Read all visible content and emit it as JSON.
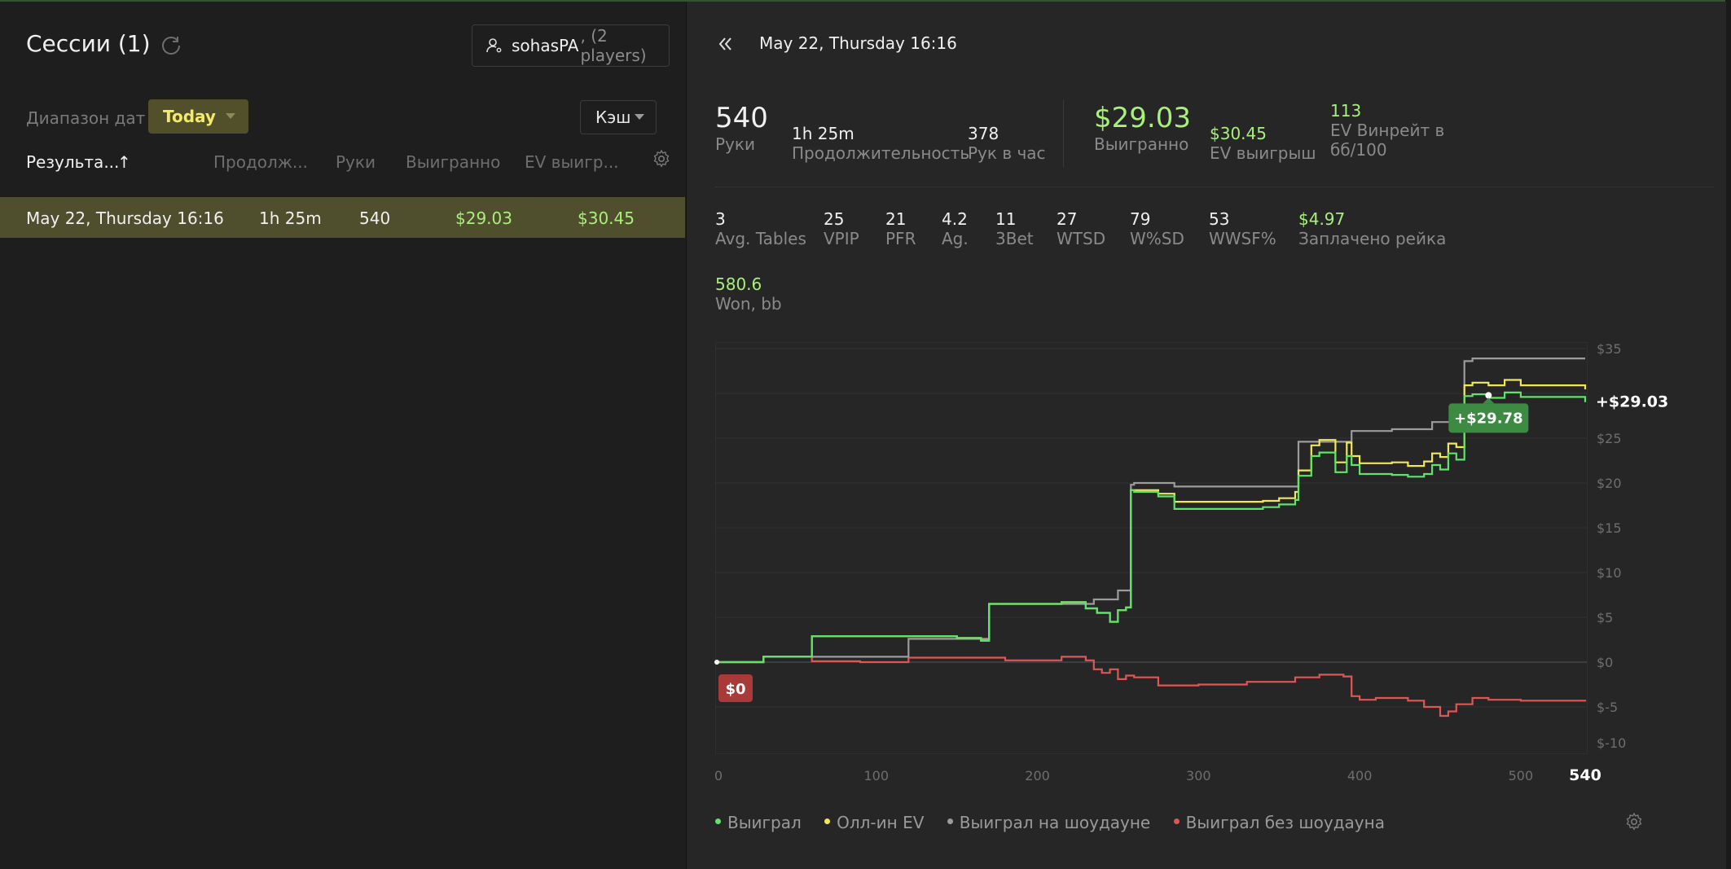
{
  "left_panel": {
    "title": "Сессии (1)",
    "player": {
      "name": "sohasPA",
      "count": ", (2 players)"
    },
    "date_range_label": "Диапазон дат",
    "date_range_value": "Today",
    "game_type": "Кэш",
    "columns": [
      "Результа...",
      "Продолж...",
      "Руки",
      "Выигранно",
      "EV выигр..."
    ],
    "rows": [
      {
        "date": "May 22, Thursday 16:16",
        "duration": "1h 25m",
        "hands": "540",
        "won": "$29.03",
        "ev": "$30.45"
      }
    ]
  },
  "right_panel": {
    "session_title": "May 22, Thursday 16:16",
    "summary": {
      "hands": {
        "value": "540",
        "label": "Руки"
      },
      "duration": {
        "value": "1h 25m",
        "label": "Продолжительность"
      },
      "hands_per_hour": {
        "value": "378",
        "label": "Рук в час"
      },
      "won": {
        "value": "$29.03",
        "label": "Выигранно"
      },
      "ev_won": {
        "value": "$30.45",
        "label": "EV выигрыш"
      },
      "ev_winrate": {
        "value": "113",
        "label": "EV Винрейт в",
        "label2": "бб/100"
      }
    },
    "stats": [
      {
        "value": "3",
        "label": "Avg. Tables"
      },
      {
        "value": "25",
        "label": "VPIP"
      },
      {
        "value": "21",
        "label": "PFR"
      },
      {
        "value": "4.2",
        "label": "Ag."
      },
      {
        "value": "11",
        "label": "3Bet"
      },
      {
        "value": "27",
        "label": "WTSD"
      },
      {
        "value": "79",
        "label": "W%SD"
      },
      {
        "value": "53",
        "label": "WWSF%"
      },
      {
        "value": "$4.97",
        "label": "Заплачено рейка"
      }
    ],
    "won_bb": {
      "value": "580.6",
      "label": "Won, bb"
    }
  },
  "chart_data": {
    "type": "line",
    "x_ticks": [
      "0",
      "100",
      "200",
      "300",
      "400",
      "500",
      "540"
    ],
    "y_ticks": [
      "$35",
      "$25",
      "$20",
      "$15",
      "$10",
      "$5",
      "$0",
      "$-5",
      "$-10"
    ],
    "xlim": [
      0,
      540
    ],
    "ylim": [
      -10,
      35
    ],
    "series": [
      {
        "name": "Выиграл",
        "color": "#5fe36a",
        "x": [
          0,
          20,
          30,
          60,
          120,
          150,
          165,
          170,
          215,
          230,
          237,
          245,
          250,
          255,
          258,
          260,
          275,
          285,
          340,
          350,
          360,
          362,
          370,
          375,
          385,
          392,
          395,
          400,
          420,
          430,
          440,
          445,
          450,
          455,
          460,
          465,
          470,
          480,
          490,
          500,
          540
        ],
        "y": [
          0,
          0,
          0.6,
          2.9,
          2.9,
          2.7,
          2.4,
          6.5,
          6.7,
          6.0,
          5.5,
          4.5,
          5.8,
          6.1,
          19.2,
          19.0,
          18.5,
          17.1,
          17.3,
          17.6,
          18.1,
          20.8,
          23.0,
          23.4,
          21.2,
          23.0,
          22.0,
          21.0,
          20.9,
          20.7,
          21.0,
          22.0,
          21.5,
          23.3,
          22.6,
          29.7,
          29.9,
          29.5,
          30.1,
          29.6,
          29.03
        ]
      },
      {
        "name": "Олл-ин EV",
        "color": "#f0e85a",
        "x": [
          0,
          20,
          30,
          60,
          120,
          150,
          165,
          170,
          215,
          230,
          237,
          245,
          250,
          255,
          258,
          260,
          275,
          285,
          340,
          350,
          360,
          362,
          370,
          375,
          385,
          392,
          395,
          400,
          420,
          430,
          440,
          445,
          450,
          455,
          460,
          465,
          470,
          480,
          490,
          500,
          540
        ],
        "y": [
          0,
          0,
          0.6,
          2.9,
          2.9,
          2.7,
          2.4,
          6.5,
          6.7,
          6.0,
          5.5,
          4.5,
          5.8,
          6.1,
          19.2,
          19.2,
          18.8,
          17.9,
          18.0,
          18.3,
          19.0,
          21.4,
          24.2,
          24.8,
          22.3,
          24.5,
          23.0,
          22.2,
          22.3,
          21.9,
          22.4,
          23.3,
          22.9,
          24.4,
          24.0,
          30.9,
          31.2,
          30.9,
          31.5,
          30.9,
          30.45
        ]
      },
      {
        "name": "Выиграл на шоудауне",
        "color": "#9c9c9c",
        "x": [
          0,
          20,
          30,
          120,
          165,
          170,
          230,
          235,
          245,
          250,
          255,
          258,
          260,
          275,
          285,
          340,
          360,
          362,
          385,
          395,
          400,
          420,
          440,
          445,
          460,
          465,
          470,
          540
        ],
        "y": [
          0,
          0,
          0.6,
          2.6,
          2.6,
          6.5,
          6.5,
          7.0,
          7.0,
          8.0,
          8.0,
          19.8,
          20.0,
          20.0,
          19.6,
          19.6,
          19.6,
          24.6,
          24.6,
          25.8,
          25.8,
          26.0,
          26.0,
          26.8,
          26.8,
          33.6,
          33.9,
          33.9
        ]
      },
      {
        "name": "Выиграл без шоудауна",
        "color": "#e05555",
        "x": [
          0,
          20,
          30,
          60,
          90,
          120,
          150,
          180,
          200,
          215,
          230,
          235,
          240,
          245,
          250,
          255,
          260,
          275,
          300,
          330,
          360,
          375,
          390,
          395,
          400,
          410,
          430,
          440,
          450,
          455,
          460,
          470,
          480,
          500,
          540
        ],
        "y": [
          0,
          0,
          0.6,
          0.1,
          0,
          0.5,
          0.5,
          0.2,
          0.2,
          0.6,
          0.2,
          -0.8,
          -1.2,
          -0.8,
          -1.9,
          -1.5,
          -1.7,
          -2.6,
          -2.5,
          -2.2,
          -1.7,
          -1.4,
          -1.6,
          -3.8,
          -4.2,
          -4.0,
          -4.3,
          -5.0,
          -6.0,
          -5.5,
          -4.7,
          -4.0,
          -4.2,
          -4.3,
          -4.4
        ]
      }
    ],
    "end_label": "+$29.03",
    "tooltip_label": "+$29.78",
    "start_label": "$0",
    "grid": true
  }
}
